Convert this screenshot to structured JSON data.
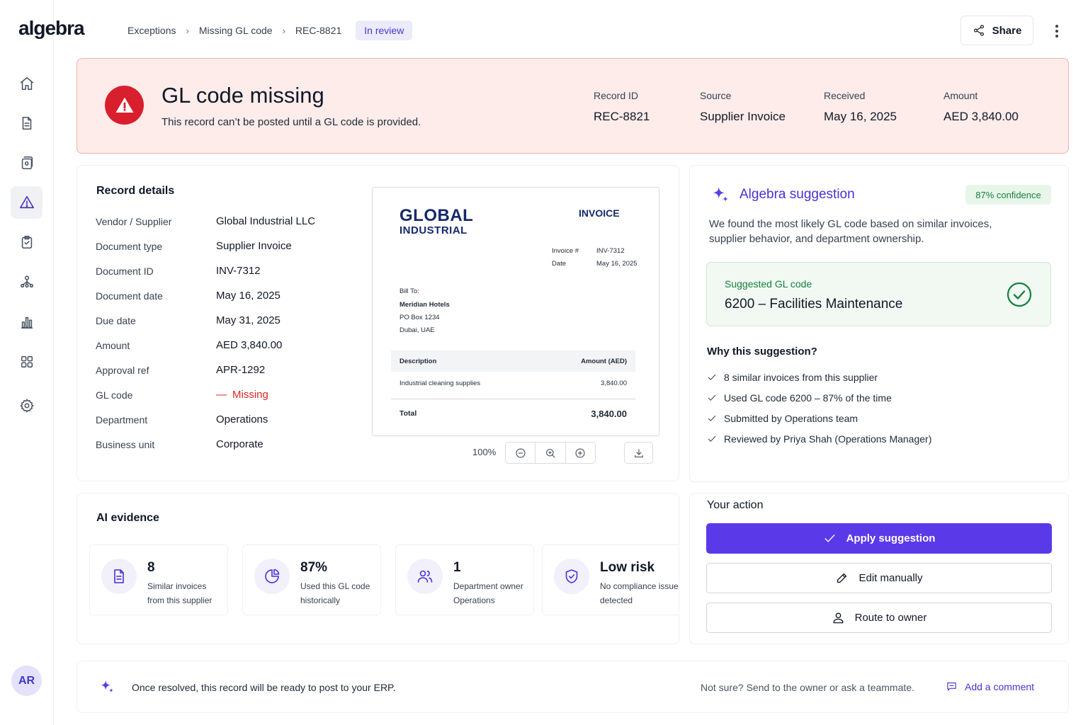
{
  "app": {
    "logo": "algebra"
  },
  "header": {
    "breadcrumb": [
      "Exceptions",
      "Missing GL code",
      "REC-8821"
    ],
    "status": "In review",
    "share_label": "Share"
  },
  "sidebar": {
    "items": [
      {
        "icon": "home-icon"
      },
      {
        "icon": "document-icon"
      },
      {
        "icon": "records-icon"
      },
      {
        "icon": "warning-icon",
        "active": true
      },
      {
        "icon": "clipboard-check-icon"
      },
      {
        "icon": "workflow-icon"
      },
      {
        "icon": "bar-chart-icon"
      },
      {
        "icon": "apps-grid-icon"
      },
      {
        "icon": "gear-icon"
      }
    ],
    "avatar_initials": "AR"
  },
  "alert": {
    "title": "GL code missing",
    "subtitle": "This record can’t be posted until a GL code is provided.",
    "meta": [
      {
        "label": "Record ID",
        "value": "REC-8821"
      },
      {
        "label": "Source",
        "value": "Supplier Invoice"
      },
      {
        "label": "Received",
        "value": "May 16, 2025"
      },
      {
        "label": "Amount",
        "value": "AED 3,840.00"
      }
    ]
  },
  "record_details": {
    "title": "Record details",
    "rows": [
      {
        "label": "Vendor / Supplier",
        "value": "Global Industrial LLC"
      },
      {
        "label": "Document type",
        "value": "Supplier Invoice"
      },
      {
        "label": "Document ID",
        "value": "INV-7312"
      },
      {
        "label": "Document date",
        "value": "May 16, 2025"
      },
      {
        "label": "Due date",
        "value": "May 31, 2025"
      },
      {
        "label": "Amount",
        "value": "AED 3,840.00"
      },
      {
        "label": "Approval ref",
        "value": "APR-1292"
      },
      {
        "label": "GL code",
        "value": "Missing"
      },
      {
        "label": "Department",
        "value": "Operations"
      },
      {
        "label": "Business unit",
        "value": "Corporate"
      }
    ]
  },
  "invoice_preview": {
    "brand_line1": "GLOBAL",
    "brand_line2": "INDUSTRIAL",
    "doc_word": "INVOICE",
    "invoice_no_label": "Invoice #",
    "invoice_no": "INV-7312",
    "date_label": "Date",
    "date": "May 16, 2025",
    "bill_to_label": "Bill To:",
    "bill_to_name": "Meridian Hotels",
    "bill_to_addr1": "PO Box 1234",
    "bill_to_addr2": "Dubai, UAE",
    "col_description": "Description",
    "col_amount": "Amount (AED)",
    "line_desc": "Industrial cleaning supplies",
    "line_amount": "3,840.00",
    "total_label": "Total",
    "total": "3,840.00",
    "zoom": "100%"
  },
  "suggestion": {
    "title": "Algebra suggestion",
    "confidence": "87% confidence",
    "description": "We found the most likely GL code based on similar invoices, supplier behavior, and department ownership.",
    "box_label": "Suggested GL code",
    "code": "6200 – Facilities Maintenance",
    "why_title": "Why this suggestion?",
    "reasons": [
      "8 similar invoices from this supplier",
      "Used GL code 6200 – 87% of the time",
      "Submitted by Operations team",
      "Reviewed by Priya Shah (Operations Manager)"
    ]
  },
  "action": {
    "title": "Your action",
    "apply": "Apply suggestion",
    "edit": "Edit manually",
    "route": "Route to owner"
  },
  "evidence": {
    "title": "AI evidence",
    "items": [
      {
        "icon": "document-icon",
        "value": "8",
        "line1": "Similar invoices",
        "line2": "from this supplier"
      },
      {
        "icon": "pie-chart-icon",
        "value": "87%",
        "line1": "Used this GL code",
        "line2": "historically"
      },
      {
        "icon": "users-icon",
        "value": "1",
        "line1": "Department owner",
        "line2": "Operations"
      },
      {
        "icon": "shield-check-icon",
        "value": "Low risk",
        "line1": "No compliance issues",
        "line2": "detected"
      }
    ]
  },
  "footer": {
    "text": "Once resolved, this record will be ready to post to your ERP.",
    "hint": "Not sure? Send to the owner or ask a teammate.",
    "link": "Add a comment"
  }
}
